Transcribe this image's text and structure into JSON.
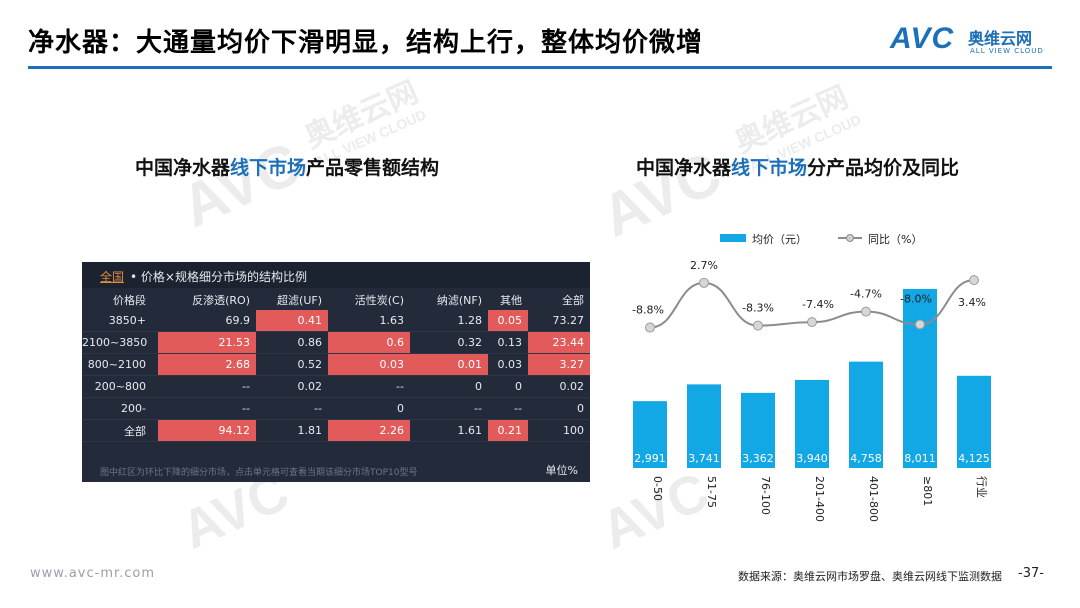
{
  "title": "净水器：大通量均价下滑明显，结构上行，整体均价微增",
  "logo": {
    "avc": "AVC",
    "brand_cn": "奥维云网",
    "brand_en": "ALL VIEW CLOUD"
  },
  "watermark": {
    "avc": "AVC",
    "brand_cn": "奥维云网",
    "brand_en": "ALL VIEW CLOUD"
  },
  "left_title": {
    "pre": "中国净水器",
    "highlight": "线下市场",
    "post": "产品零售额结构"
  },
  "right_title": {
    "pre": "中国净水器",
    "highlight": "线下市场",
    "post": "分产品均价及同比"
  },
  "table": {
    "all_link": "全国",
    "header_text": "• 价格×规格细分市场的结构比例",
    "columns": [
      "价格段",
      "反渗透(RO)",
      "超滤(UF)",
      "活性炭(C)",
      "纳滤(NF)",
      "其他",
      "全部"
    ],
    "rows": [
      {
        "cells": [
          "3850+",
          "69.9",
          "0.41",
          "1.63",
          "1.28",
          "0.05",
          "73.27"
        ],
        "hot": [
          false,
          false,
          true,
          false,
          false,
          true,
          false
        ]
      },
      {
        "cells": [
          "2100~3850",
          "21.53",
          "0.86",
          "0.6",
          "0.32",
          "0.13",
          "23.44"
        ],
        "hot": [
          false,
          true,
          false,
          true,
          false,
          false,
          true
        ]
      },
      {
        "cells": [
          "800~2100",
          "2.68",
          "0.52",
          "0.03",
          "0.01",
          "0.03",
          "3.27"
        ],
        "hot": [
          false,
          true,
          false,
          true,
          true,
          false,
          true
        ]
      },
      {
        "cells": [
          "200~800",
          "--",
          "0.02",
          "--",
          "0",
          "0",
          "0.02"
        ],
        "hot": [
          false,
          false,
          false,
          false,
          false,
          false,
          false
        ]
      },
      {
        "cells": [
          "200-",
          "--",
          "--",
          "0",
          "--",
          "--",
          "0"
        ],
        "hot": [
          false,
          false,
          false,
          false,
          false,
          false,
          false
        ]
      },
      {
        "cells": [
          "全部",
          "94.12",
          "1.81",
          "2.26",
          "1.61",
          "0.21",
          "100"
        ],
        "hot": [
          false,
          true,
          false,
          true,
          false,
          true,
          false
        ]
      }
    ],
    "footnote": "图中红区为环比下降的细分市场，点击单元格可查看当期该细分市场TOP10型号",
    "unit": "单位%"
  },
  "chart_data": {
    "type": "bar",
    "categories": [
      "0-50",
      "51-75",
      "76-100",
      "201-400",
      "401-800",
      "≥801",
      "行业"
    ],
    "series": [
      {
        "name": "均价（元）",
        "type": "bar",
        "values": [
          2991,
          3741,
          3362,
          3940,
          4758,
          8011,
          4125
        ],
        "labels": [
          "2,991",
          "3,741",
          "3,362",
          "3,940",
          "4,758",
          "8,011",
          "4,125"
        ]
      },
      {
        "name": "同比（%）",
        "type": "line",
        "values": [
          -8.8,
          2.7,
          -8.3,
          -7.4,
          -4.7,
          -8.0,
          3.4
        ],
        "labels": [
          "-8.8%",
          "2.7%",
          "-8.3%",
          "-7.4%",
          "-4.7%",
          "-8.0%",
          "3.4%"
        ]
      }
    ],
    "legend": "top",
    "colors": {
      "bar": "#12a8e6",
      "line": "#8c8c8c"
    }
  },
  "footer": {
    "url": "www.avc-mr.com",
    "source": "数据来源：奥维云网市场罗盘、奥维云网线下监测数据",
    "page": "-37-"
  }
}
